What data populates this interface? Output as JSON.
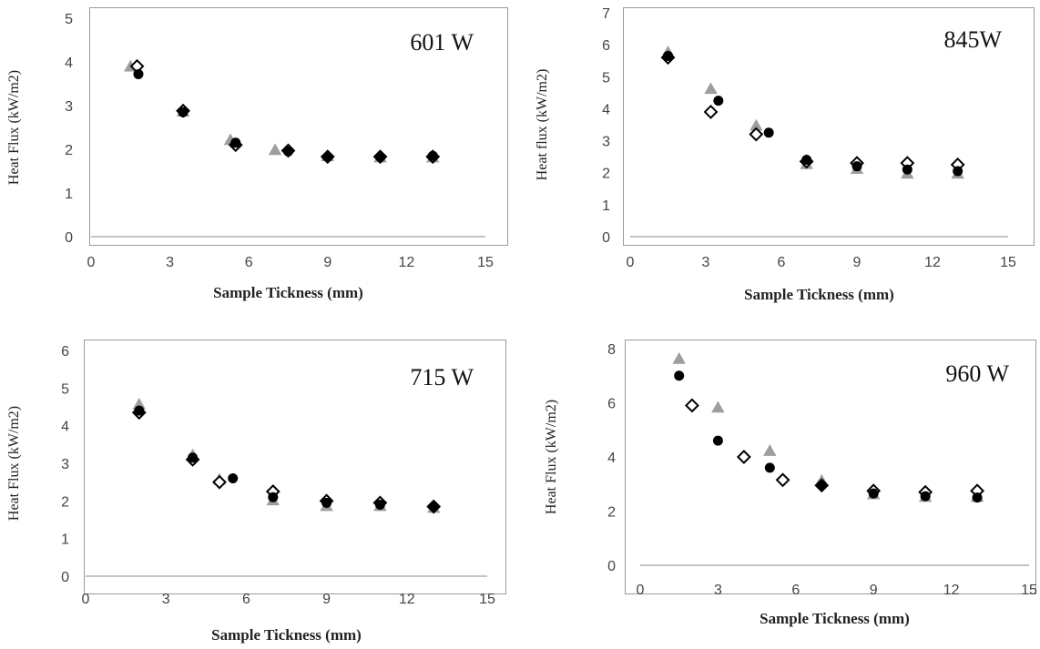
{
  "chart_data": [
    {
      "type": "scatter",
      "title": "601 W",
      "xlabel": "Sample Tickness (mm)",
      "ylabel": "Heat Flux (kW/m2)",
      "xlim": [
        0,
        15
      ],
      "ylim": [
        0,
        5
      ],
      "xticks": [
        "0",
        "3",
        "6",
        "9",
        "12",
        "15"
      ],
      "yticks": [
        "0",
        "1",
        "2",
        "3",
        "4",
        "5"
      ],
      "grid": false,
      "series": [
        {
          "marker": "diamond",
          "x": [
            1.75,
            3.5,
            5.5,
            7.5,
            9,
            11,
            13
          ],
          "y": [
            3.9,
            2.88,
            2.1,
            1.97,
            1.83,
            1.83,
            1.83
          ]
        },
        {
          "marker": "circle",
          "x": [
            1.8,
            3.5,
            5.5,
            7.5,
            9,
            11,
            13
          ],
          "y": [
            3.72,
            2.85,
            2.15,
            1.95,
            1.82,
            1.82,
            1.85
          ]
        },
        {
          "marker": "triangle",
          "x": [
            1.5,
            3.5,
            5.3,
            7.0,
            9,
            11,
            13
          ],
          "y": [
            3.88,
            2.85,
            2.2,
            1.97,
            1.83,
            1.8,
            1.8
          ]
        }
      ]
    },
    {
      "type": "scatter",
      "title": "845W",
      "xlabel": "Sample Tickness (mm)",
      "ylabel": "Heat flux (kW/m2)",
      "xlim": [
        0,
        15
      ],
      "ylim": [
        0,
        7
      ],
      "xticks": [
        "0",
        "3",
        "6",
        "9",
        "12",
        "15"
      ],
      "yticks": [
        "0",
        "1",
        "2",
        "3",
        "4",
        "5",
        "6",
        "7"
      ],
      "grid": false,
      "series": [
        {
          "marker": "diamond",
          "x": [
            1.5,
            3.2,
            5.0,
            7,
            9,
            11,
            13
          ],
          "y": [
            5.6,
            3.9,
            3.2,
            2.35,
            2.3,
            2.3,
            2.25
          ]
        },
        {
          "marker": "circle",
          "x": [
            1.5,
            3.5,
            5.5,
            7,
            9,
            11,
            13
          ],
          "y": [
            5.65,
            4.25,
            3.25,
            2.4,
            2.2,
            2.1,
            2.05
          ]
        },
        {
          "marker": "triangle",
          "x": [
            1.5,
            3.2,
            5.0,
            7,
            9,
            11,
            13
          ],
          "y": [
            5.75,
            4.6,
            3.45,
            2.25,
            2.1,
            1.95,
            1.95
          ]
        }
      ]
    },
    {
      "type": "scatter",
      "title": "715 W",
      "xlabel": "Sample Tickness (mm)",
      "ylabel": "Heat Flux (kW/m2)",
      "xlim": [
        0,
        15
      ],
      "ylim": [
        0,
        6
      ],
      "xticks": [
        "0",
        "3",
        "6",
        "9",
        "12",
        "15"
      ],
      "yticks": [
        "0",
        "1",
        "2",
        "3",
        "4",
        "5",
        "6"
      ],
      "grid": false,
      "series": [
        {
          "marker": "diamond",
          "x": [
            2,
            4,
            5,
            7,
            9,
            11,
            13
          ],
          "y": [
            4.35,
            3.1,
            2.5,
            2.25,
            2.0,
            1.95,
            1.85
          ]
        },
        {
          "marker": "circle",
          "x": [
            2,
            4,
            5.5,
            7,
            9,
            11,
            13
          ],
          "y": [
            4.4,
            3.15,
            2.6,
            2.1,
            1.95,
            1.9,
            1.85
          ]
        },
        {
          "marker": "triangle",
          "x": [
            2,
            4,
            5,
            7,
            9,
            11,
            13
          ],
          "y": [
            4.55,
            3.2,
            2.55,
            2.0,
            1.85,
            1.85,
            1.8
          ]
        }
      ]
    },
    {
      "type": "scatter",
      "title": "960 W",
      "xlabel": "Sample Tickness (mm)",
      "ylabel": "Heat Flux (kW/m2)",
      "xlim": [
        0,
        15
      ],
      "ylim": [
        0,
        8
      ],
      "xticks": [
        "0",
        "3",
        "6",
        "9",
        "12",
        "15"
      ],
      "yticks": [
        "0",
        "2",
        "4",
        "6",
        "8"
      ],
      "grid": false,
      "series": [
        {
          "marker": "diamond",
          "x": [
            2,
            4,
            5.5,
            7,
            9,
            11,
            13
          ],
          "y": [
            5.9,
            4.0,
            3.15,
            2.95,
            2.75,
            2.7,
            2.75
          ]
        },
        {
          "marker": "circle",
          "x": [
            1.5,
            3,
            5,
            7,
            9,
            11,
            13
          ],
          "y": [
            7.0,
            4.6,
            3.6,
            2.95,
            2.65,
            2.55,
            2.5
          ]
        },
        {
          "marker": "triangle",
          "x": [
            1.5,
            3,
            5,
            7,
            9,
            11,
            13
          ],
          "y": [
            7.6,
            5.8,
            4.2,
            3.1,
            2.6,
            2.5,
            2.5
          ]
        }
      ]
    }
  ]
}
